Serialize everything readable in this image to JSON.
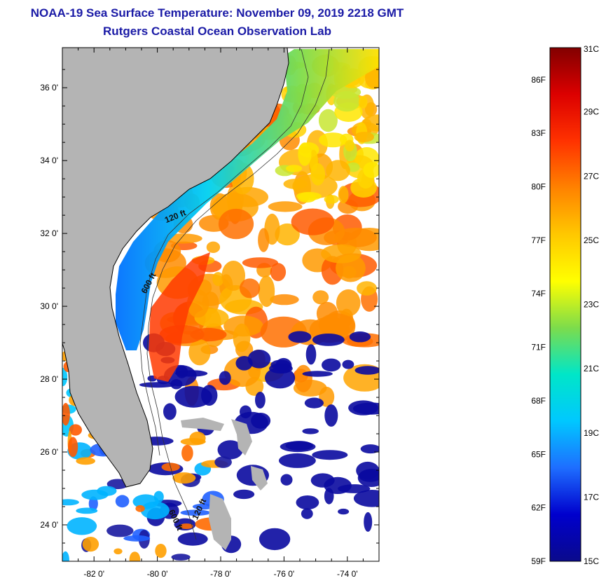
{
  "title": "NOAA-19 Sea Surface Temperature:  November 09, 2019 2218 GMT",
  "subtitle": "Rutgers Coastal Ocean Observation Lab",
  "map": {
    "lat_ticks": [
      {
        "value": 24,
        "label": "24 0'"
      },
      {
        "value": 26,
        "label": "26 0'"
      },
      {
        "value": 28,
        "label": "28 0'"
      },
      {
        "value": 30,
        "label": "30 0'"
      },
      {
        "value": 32,
        "label": "32 0'"
      },
      {
        "value": 34,
        "label": "34 0'"
      },
      {
        "value": 36,
        "label": "36 0'"
      }
    ],
    "lon_ticks": [
      {
        "value": -82,
        "label": "-82 0'"
      },
      {
        "value": -80,
        "label": "-80 0'"
      },
      {
        "value": -78,
        "label": "-78 0'"
      },
      {
        "value": -76,
        "label": "-76 0'"
      },
      {
        "value": -74,
        "label": "-74 0'"
      }
    ],
    "lat_range": [
      23.0,
      37.1
    ],
    "lon_range": [
      -83.0,
      -73.0
    ],
    "isobath_labels": [
      {
        "text": "120 ft",
        "lat": 32.4,
        "lon": -79.4
      },
      {
        "text": "600 ft",
        "lat": 30.6,
        "lon": -80.2
      },
      {
        "text": "600 ft",
        "lat": 24.1,
        "lon": -79.5
      },
      {
        "text": "120 ft",
        "lat": 24.4,
        "lon": -78.6
      }
    ],
    "colors": {
      "land": "#b4b4b4",
      "cloud": "#ffffff",
      "coastline": "#000000",
      "bathymetry": "#333333"
    }
  },
  "colorbar": {
    "range_c": [
      15,
      31
    ],
    "celsius_labels": [
      "15C",
      "17C",
      "19C",
      "21C",
      "23C",
      "25C",
      "27C",
      "29C",
      "31C"
    ],
    "fahrenheit_labels": [
      "59F",
      "62F",
      "65F",
      "68F",
      "71F",
      "74F",
      "77F",
      "80F",
      "83F",
      "86F"
    ],
    "colormap": [
      "#0a0a8c",
      "#0000cd",
      "#1e6eff",
      "#00c8ff",
      "#00e6c8",
      "#7ddc4b",
      "#ffff00",
      "#ffc800",
      "#ff8200",
      "#ff3200",
      "#dc0000",
      "#820000"
    ]
  }
}
